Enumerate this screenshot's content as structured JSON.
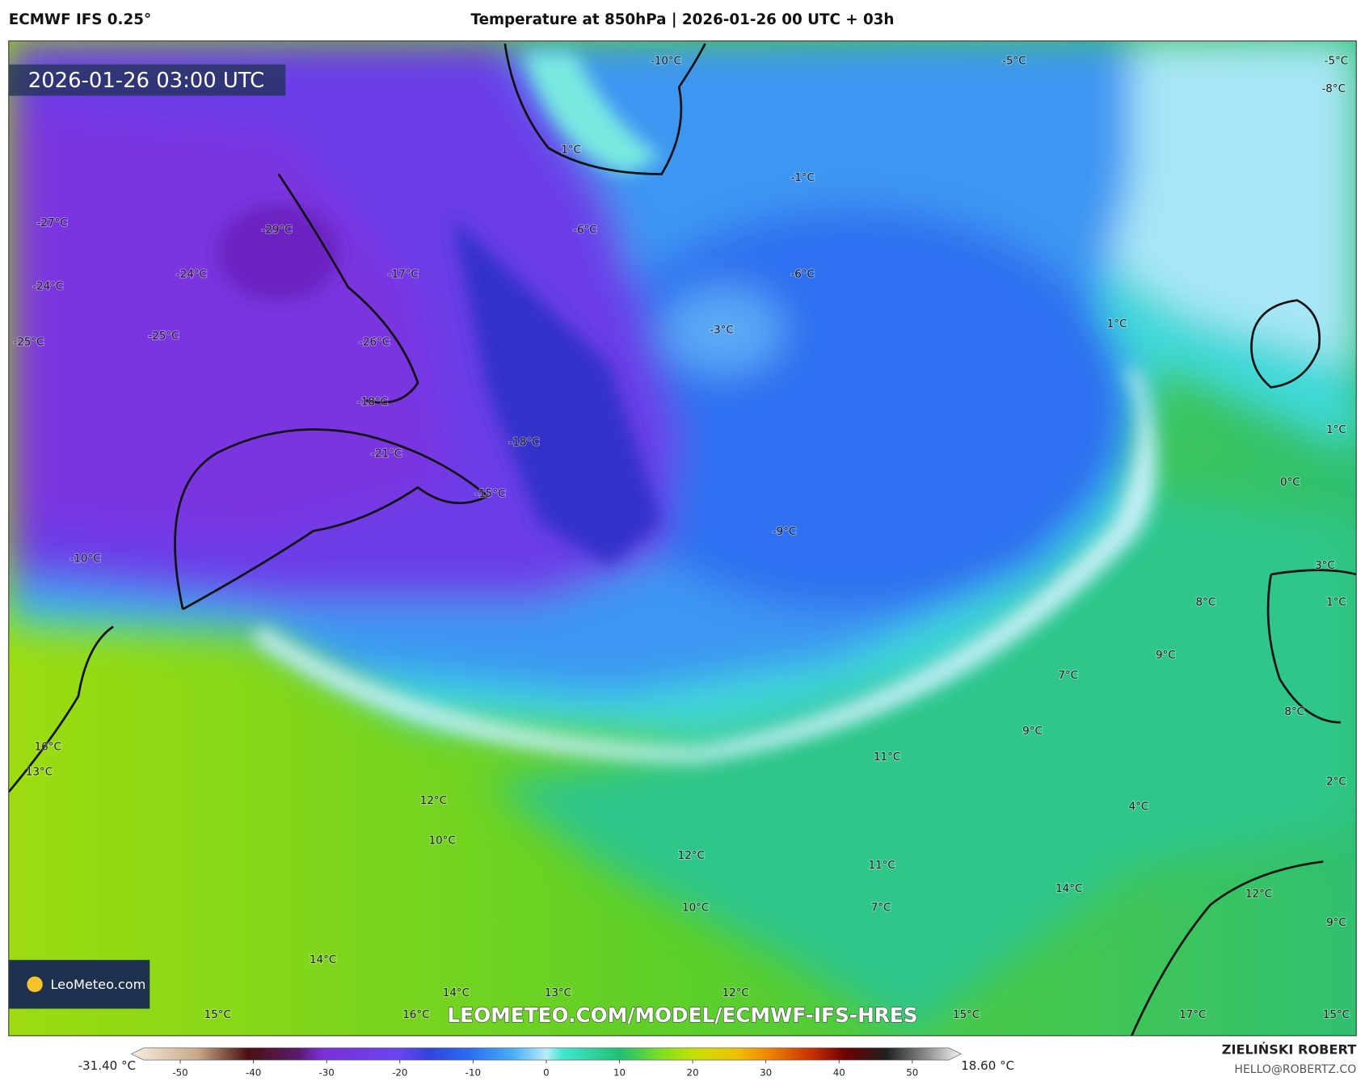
{
  "header": {
    "model": "ECMWF IFS 0.25°",
    "title": "Temperature at 850hPa | 2026-01-26 00 UTC + 03h"
  },
  "map": {
    "timestamp": "2026-01-26 03:00 UTC",
    "labels": [
      "-10°C",
      "-5°C",
      "-5°C",
      "-8°C",
      "1°C",
      "-1°C",
      "-6°C",
      "-27°C",
      "-29°C",
      "-24°C",
      "-17°C",
      "-6°C",
      "-24°C",
      "-3°C",
      "-25°C",
      "-25°C",
      "-26°C",
      "1°C",
      "-18°C",
      "1°C",
      "-18°C",
      "-21°C",
      "-15°C",
      "0°C",
      "-9°C",
      "-10°C",
      "3°C",
      "8°C",
      "1°C",
      "9°C",
      "7°C",
      "8°C",
      "9°C",
      "16°C",
      "11°C",
      "13°C",
      "2°C",
      "12°C",
      "4°C",
      "10°C",
      "12°C",
      "11°C",
      "14°C",
      "12°C",
      "10°C",
      "7°C",
      "9°C",
      "14°C",
      "14°C",
      "13°C",
      "12°C",
      "15°C",
      "16°C",
      "15°C",
      "17°C",
      "15°C"
    ],
    "watermark": "LEOMETEO.COM/MODEL/ECMWF-IFS-HRES",
    "logo": "LeoMeteo.com"
  },
  "legend": {
    "min_label": "-31.40 °C",
    "max_label": "18.60 °C",
    "range": [
      -55,
      55
    ],
    "ticks": [
      -50,
      -40,
      -30,
      -20,
      -10,
      0,
      10,
      20,
      30,
      40,
      50
    ]
  },
  "credit": {
    "author": "ZIELIŃSKI ROBERT",
    "email": "HELLO@ROBERTZ.CO"
  }
}
